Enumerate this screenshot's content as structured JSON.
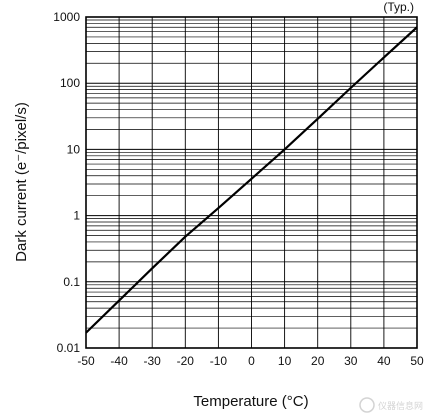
{
  "chart_data": {
    "type": "line",
    "annotation": "(Typ.)",
    "xlabel": "Temperature (°C)",
    "ylabel": "Dark current (e⁻/pixel/s)",
    "xlim": [
      -50,
      50
    ],
    "ylim": [
      0.01,
      1000
    ],
    "y_scale": "log",
    "grid": true,
    "x_ticks": [
      -50,
      -40,
      -30,
      -20,
      -10,
      0,
      10,
      20,
      30,
      40,
      50
    ],
    "x_tick_labels": [
      "-50",
      "-40",
      "-30",
      "-20",
      "-10",
      "0",
      "10",
      "20",
      "30",
      "40",
      "50"
    ],
    "y_ticks": [
      0.01,
      0.1,
      1,
      10,
      100,
      1000
    ],
    "y_tick_labels": [
      "0.01",
      "0.1",
      "1",
      "10",
      "100",
      "1000"
    ],
    "series": [
      {
        "x": [
          -50,
          -40,
          -30,
          -20,
          -10,
          0,
          10,
          20,
          30,
          40,
          50
        ],
        "y": [
          0.017,
          0.052,
          0.16,
          0.48,
          1.3,
          3.6,
          10,
          29,
          85,
          245,
          700
        ]
      }
    ]
  },
  "watermark": {
    "text": "仪器信息网",
    "color": "#c9c9c9"
  }
}
